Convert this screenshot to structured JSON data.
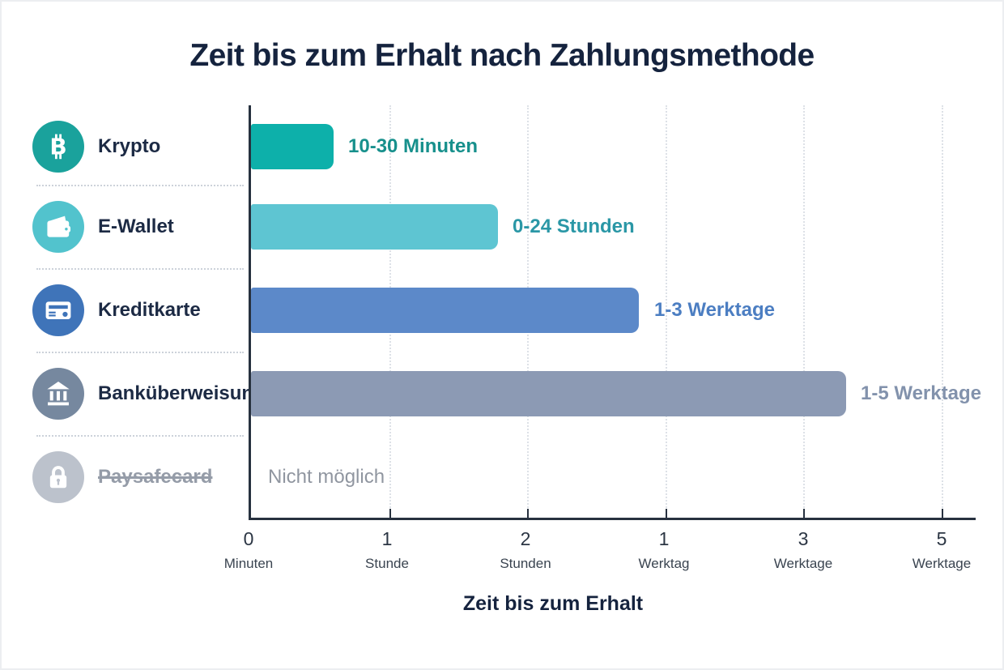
{
  "title": "Zeit bis zum Erhalt nach Zahlungsmethode",
  "chart_data": {
    "type": "bar",
    "orientation": "horizontal",
    "title": "Zeit bis zum Erhalt nach Zahlungsmethode",
    "xlabel": "Zeit bis zum Erhalt",
    "ylabel": "",
    "grid": "dotted-vertical",
    "xlim_axis_units": [
      0,
      5
    ],
    "x_axis_scale_labels": [
      "0 Minuten",
      "1 Stunde",
      "2 Stunden",
      "1 Werktag",
      "3 Werktage",
      "5 Werktage"
    ],
    "categories": [
      "Krypto",
      "E-Wallet",
      "Kreditkarte",
      "Banküberweisung",
      "Paysafecard"
    ],
    "value_labels": [
      "10-30 Minuten",
      "0-24 Stunden",
      "1-3 Werktage",
      "1-5 Werktage",
      "Nicht möglich"
    ],
    "values_axis_units": [
      0.6,
      1.79,
      2.81,
      4.31,
      null
    ],
    "rows": [
      {
        "label": "Krypto",
        "value_label": "10-30 Minuten",
        "value_axis_units": 0.6,
        "bar_color": "#0db0aa",
        "value_color": "#17908c",
        "label_color": "#1c2a44",
        "icon": "bitcoin-icon",
        "icon_bg": "#1aa29c",
        "strikethrough": false
      },
      {
        "label": "E-Wallet",
        "value_label": "0-24 Stunden",
        "value_axis_units": 1.79,
        "bar_color": "#5ec5d2",
        "value_color": "#2a97a6",
        "label_color": "#1c2a44",
        "icon": "wallet-icon",
        "icon_bg": "#52c3cd",
        "strikethrough": false
      },
      {
        "label": "Kreditkarte",
        "value_label": "1-3 Werktage",
        "value_axis_units": 2.81,
        "bar_color": "#5c89c9",
        "value_color": "#4c7ec2",
        "label_color": "#1c2a44",
        "icon": "credit-card-icon",
        "icon_bg": "#3f74b9",
        "strikethrough": false
      },
      {
        "label": "Banküberweisung",
        "value_label": "1-5 Werktage",
        "value_axis_units": 4.31,
        "bar_color": "#8c9ab4",
        "value_color": "#8292ac",
        "label_color": "#1c2a44",
        "icon": "bank-icon",
        "icon_bg": "#76889f",
        "strikethrough": false
      },
      {
        "label": "Paysafecard",
        "value_label": "Nicht möglich",
        "value_axis_units": null,
        "bar_color": null,
        "value_color": "#9096a0",
        "label_color": "#959ca8",
        "icon": "lock-icon",
        "icon_bg": "#bcc2cc",
        "strikethrough": true
      }
    ],
    "x_ticks": [
      {
        "num": "0",
        "unit": "Minuten"
      },
      {
        "num": "1",
        "unit": "Stunde"
      },
      {
        "num": "2",
        "unit": "Stunden"
      },
      {
        "num": "1",
        "unit": "Werktag"
      },
      {
        "num": "3",
        "unit": "Werktage"
      },
      {
        "num": "5",
        "unit": "Werktage"
      }
    ]
  }
}
